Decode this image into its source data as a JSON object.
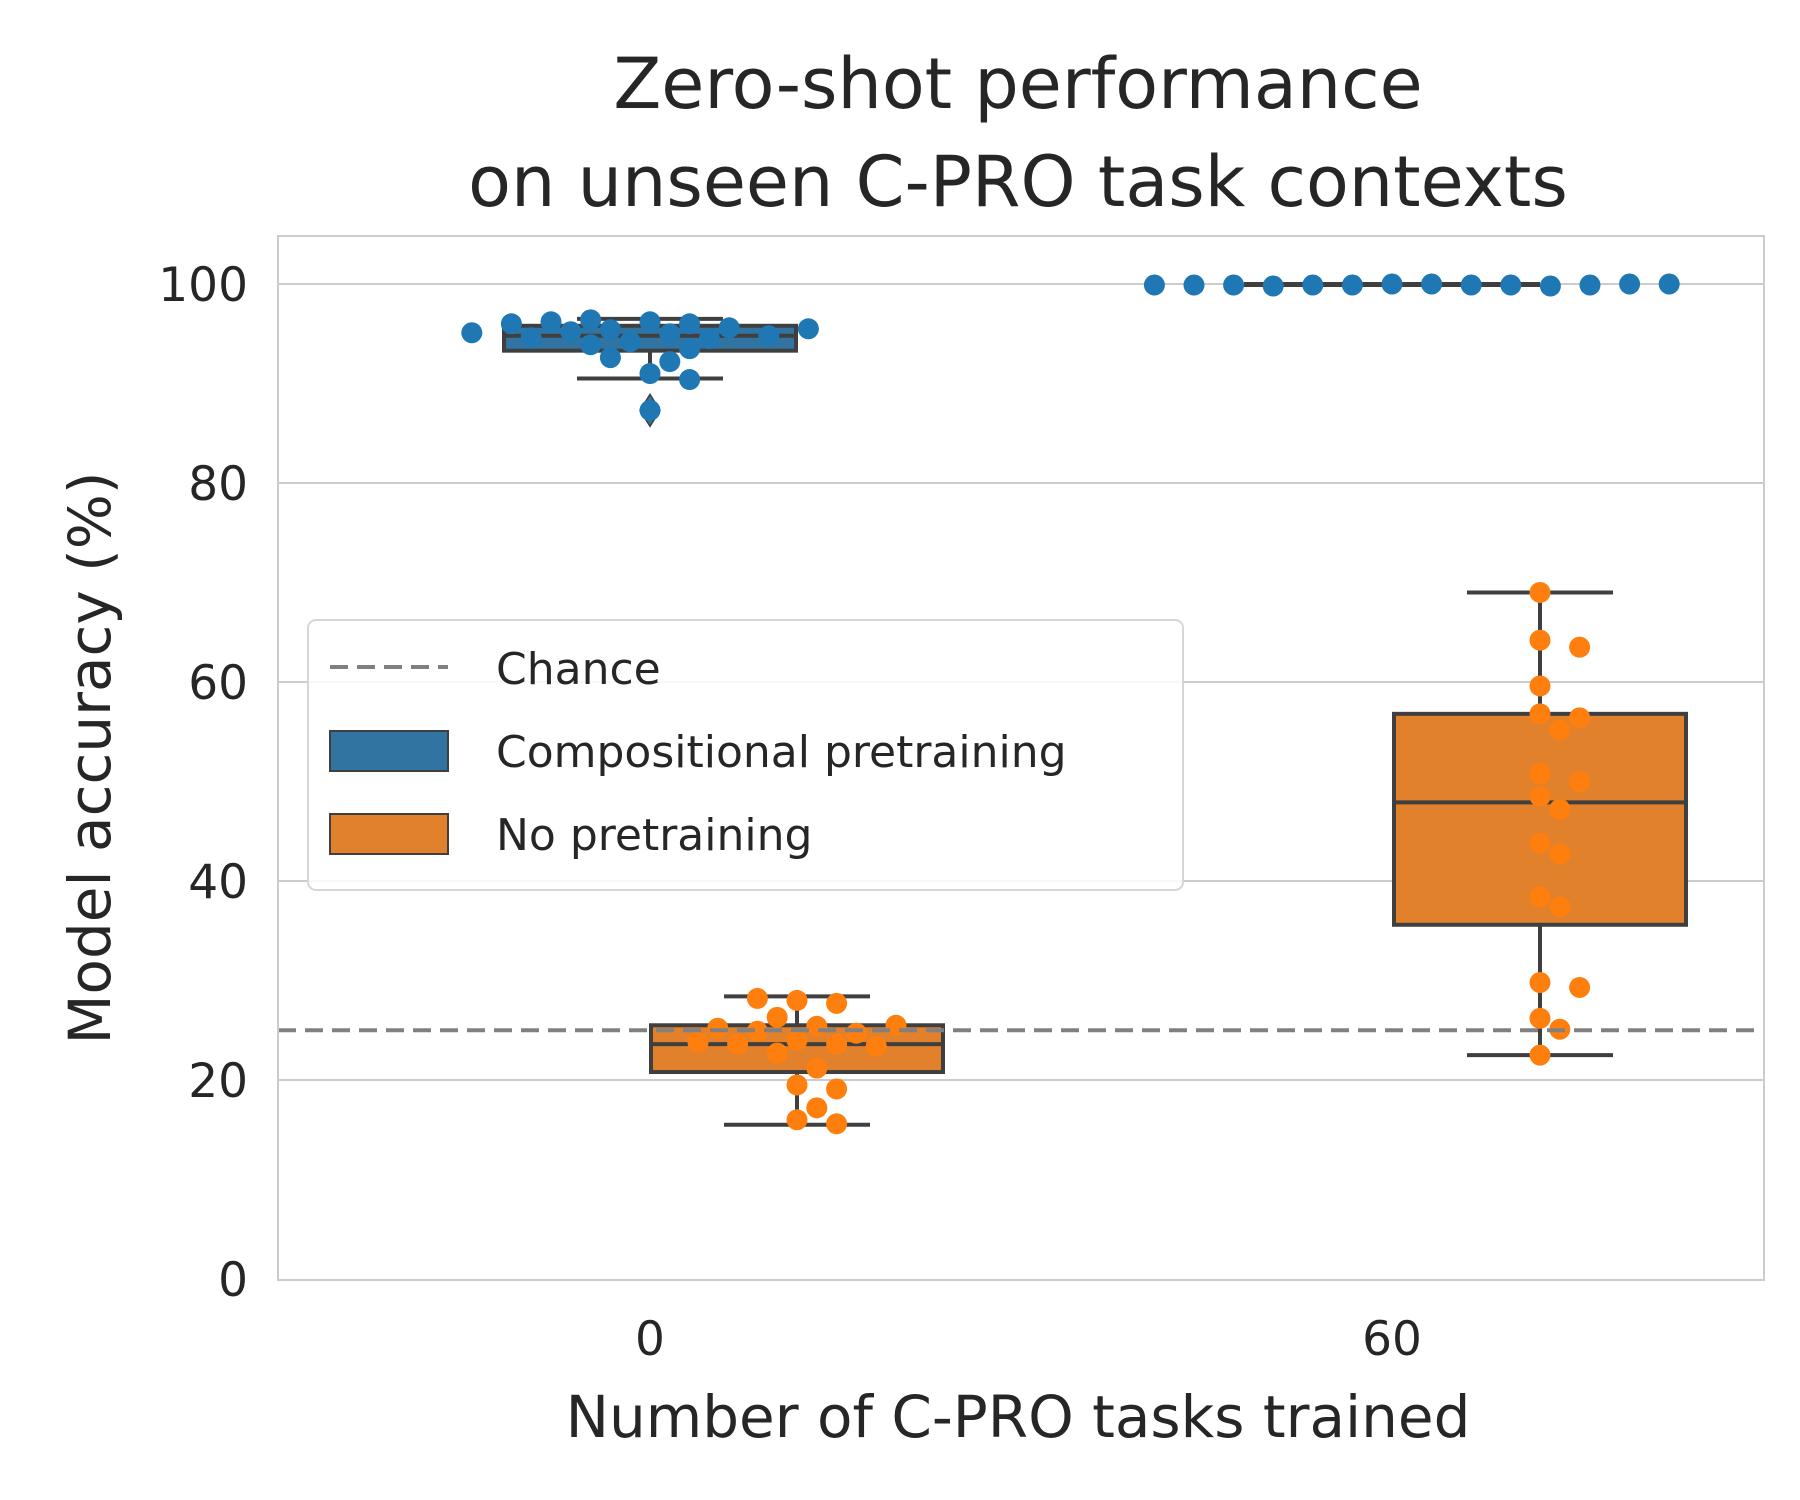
{
  "chart_data": {
    "type": "box",
    "title": [
      "Zero-shot performance",
      "on unseen C-PRO task contexts"
    ],
    "xlabel": "Number of C-PRO tasks trained",
    "ylabel": "Model accuracy (%)",
    "categories": [
      "0",
      "60"
    ],
    "ylim": [
      0,
      105
    ],
    "yticks": [
      0,
      20,
      40,
      60,
      80,
      100
    ],
    "grid": "horizontal",
    "legend_position": "center-left",
    "chance_level": 25,
    "legend": [
      {
        "label": "Chance",
        "kind": "dashed-line",
        "color": "#808080"
      },
      {
        "label": "Compositional pretraining",
        "kind": "box",
        "color": "#3274a1"
      },
      {
        "label": "No pretraining",
        "kind": "box",
        "color": "#e1812c"
      }
    ],
    "series": [
      {
        "name": "Compositional pretraining",
        "box_color": "#3274a1",
        "point_color": "#1f77b4",
        "stats": [
          {
            "category": "0",
            "whislo": 90.5,
            "q1": 93.3,
            "median": 94.8,
            "q3": 95.8,
            "whishi": 96.5,
            "outliers": [
              87.3
            ]
          },
          {
            "category": "60",
            "whislo": 99.9,
            "q1": 100.0,
            "median": 100.0,
            "q3": 100.0,
            "whishi": 100.0,
            "outliers": []
          }
        ],
        "points": [
          {
            "category": "0",
            "values": [
              96.2,
              96.0,
              95.4,
              95.0,
              94.2,
              95.6,
              94.5,
              93.5,
              95.2,
              96.4,
              94.8,
              93.9,
              94.6,
              95.5,
              96.0,
              96.2,
              95.1,
              91.0,
              92.2,
              90.4,
              92.6,
              87.3
            ]
          },
          {
            "category": "60",
            "values": [
              100.0,
              100.0,
              99.9,
              99.9,
              99.9,
              99.9,
              99.8,
              99.8,
              99.9,
              99.9,
              99.9,
              100.0,
              99.9,
              100.0
            ]
          }
        ]
      },
      {
        "name": "No pretraining",
        "box_color": "#e1812c",
        "point_color": "#ff7f0e",
        "stats": [
          {
            "category": "0",
            "whislo": 15.5,
            "q1": 20.8,
            "median": 23.6,
            "q3": 25.5,
            "whishi": 28.4,
            "outliers": []
          },
          {
            "category": "60",
            "whislo": 22.5,
            "q1": 35.6,
            "median": 47.9,
            "q3": 56.8,
            "whishi": 69.0,
            "outliers": []
          }
        ],
        "points": [
          {
            "category": "0",
            "values": [
              24.0,
              25.4,
              23.6,
              28.0,
              24.9,
              23.6,
              19.5,
              16.0,
              17.2,
              15.6,
              21.2,
              22.7,
              19.1,
              24.7,
              27.7,
              25.2,
              23.4,
              28.2,
              25.5,
              23.8,
              26.3
            ]
          },
          {
            "category": "60",
            "values": [
              69.0,
              64.2,
              63.5,
              59.6,
              56.8,
              56.4,
              55.2,
              50.8,
              50.0,
              48.5,
              47.2,
              43.8,
              42.7,
              38.4,
              37.4,
              29.8,
              29.3,
              26.2,
              25.1,
              22.5
            ]
          }
        ]
      }
    ]
  }
}
